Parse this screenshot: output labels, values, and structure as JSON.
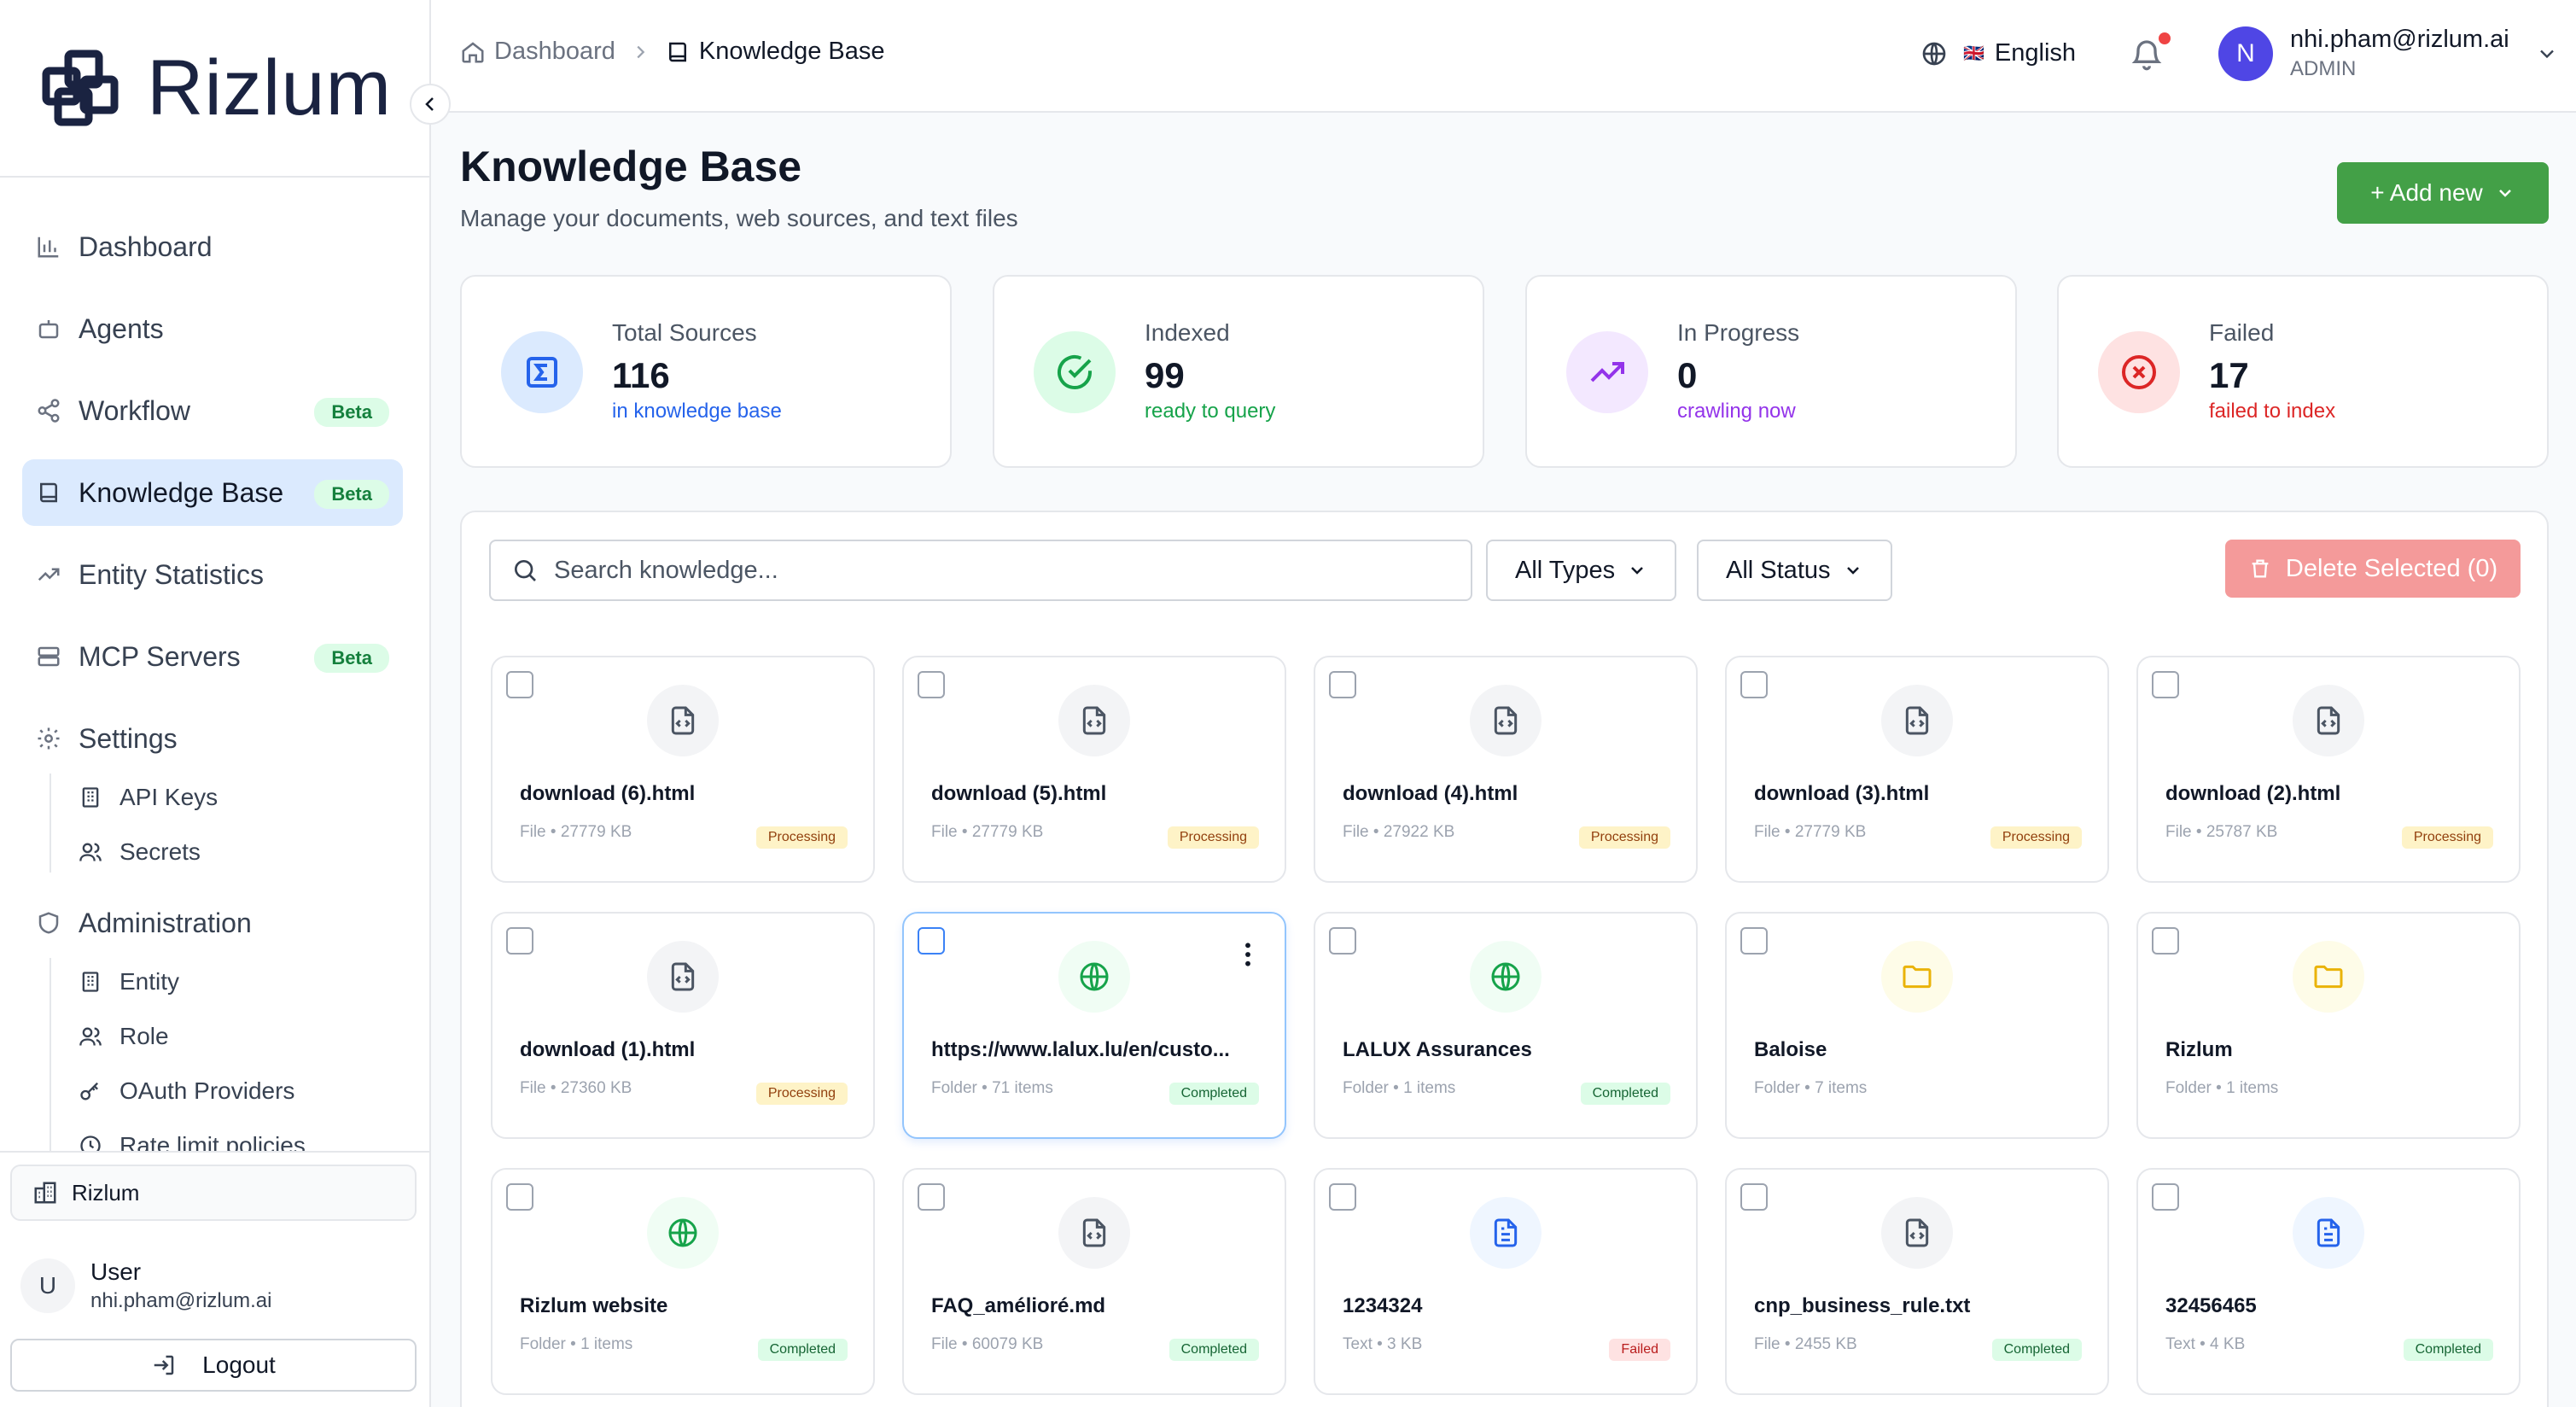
{
  "brand": {
    "name": "Rizlum"
  },
  "sidebar": {
    "items": [
      {
        "label": "Dashboard",
        "icon": "bar-chart-icon"
      },
      {
        "label": "Agents",
        "icon": "bot-icon"
      },
      {
        "label": "Workflow",
        "icon": "share-icon",
        "badge": "Beta"
      },
      {
        "label": "Knowledge Base",
        "icon": "book-icon",
        "badge": "Beta",
        "active": true
      },
      {
        "label": "Entity Statistics",
        "icon": "trending-up-icon"
      },
      {
        "label": "MCP Servers",
        "icon": "server-icon",
        "badge": "Beta"
      },
      {
        "label": "Settings",
        "icon": "gear-icon"
      }
    ],
    "settings_sub": [
      {
        "label": "API Keys",
        "icon": "building-icon"
      },
      {
        "label": "Secrets",
        "icon": "users-icon"
      }
    ],
    "admin_label": "Administration",
    "admin_sub": [
      {
        "label": "Entity",
        "icon": "building-icon"
      },
      {
        "label": "Role",
        "icon": "users-icon"
      },
      {
        "label": "OAuth Providers",
        "icon": "key-icon"
      },
      {
        "label": "Rate limit policies",
        "icon": "clock-icon"
      }
    ],
    "org": "Rizlum",
    "user": {
      "initial": "U",
      "name": "User",
      "email": "nhi.pham@rizlum.ai"
    },
    "logout": "Logout"
  },
  "topbar": {
    "breadcrumb": [
      "Dashboard",
      "Knowledge Base"
    ],
    "language": "English",
    "flag": "🇬🇧",
    "profile": {
      "initial": "N",
      "email": "nhi.pham@rizlum.ai",
      "role": "ADMIN"
    }
  },
  "page": {
    "title": "Knowledge Base",
    "subtitle": "Manage your documents, web sources, and text files",
    "add_button": "+ Add new"
  },
  "stats": [
    {
      "label": "Total Sources",
      "value": "116",
      "desc": "in knowledge base",
      "color": "#2563eb",
      "bg": "#dbeafe"
    },
    {
      "label": "Indexed",
      "value": "99",
      "desc": "ready to query",
      "color": "#16a34a",
      "bg": "#dcfce7"
    },
    {
      "label": "In Progress",
      "value": "0",
      "desc": "crawling now",
      "color": "#9333ea",
      "bg": "#f3e8ff"
    },
    {
      "label": "Failed",
      "value": "17",
      "desc": "failed to index",
      "color": "#dc2626",
      "bg": "#fee2e2"
    }
  ],
  "filters": {
    "search_placeholder": "Search knowledge...",
    "types": "All Types",
    "status": "All Status",
    "delete": "Delete Selected (0)"
  },
  "cards": [
    {
      "title": "download (6).html",
      "meta": "File • 27779 KB",
      "status": "Processing",
      "icon": "file-code-icon"
    },
    {
      "title": "download (5).html",
      "meta": "File • 27779 KB",
      "status": "Processing",
      "icon": "file-code-icon"
    },
    {
      "title": "download (4).html",
      "meta": "File • 27922 KB",
      "status": "Processing",
      "icon": "file-code-icon"
    },
    {
      "title": "download (3).html",
      "meta": "File • 27779 KB",
      "status": "Processing",
      "icon": "file-code-icon"
    },
    {
      "title": "download (2).html",
      "meta": "File • 25787 KB",
      "status": "Processing",
      "icon": "file-code-icon"
    },
    {
      "title": "download (1).html",
      "meta": "File • 27360 KB",
      "status": "Processing",
      "icon": "file-code-icon"
    },
    {
      "title": "https://www.lalux.lu/en/custo...",
      "meta": "Folder • 71 items",
      "status": "Completed",
      "icon": "globe-icon"
    },
    {
      "title": "LALUX Assurances",
      "meta": "Folder • 1 items",
      "status": "Completed",
      "icon": "globe-icon"
    },
    {
      "title": "Baloise",
      "meta": "Folder • 7 items",
      "status": "",
      "icon": "folder-icon"
    },
    {
      "title": "Rizlum",
      "meta": "Folder • 1 items",
      "status": "",
      "icon": "folder-icon"
    },
    {
      "title": "Rizlum website",
      "meta": "Folder • 1 items",
      "status": "Completed",
      "icon": "globe-icon"
    },
    {
      "title": "FAQ_amélioré.md",
      "meta": "File • 60079 KB",
      "status": "Completed",
      "icon": "file-code-icon"
    },
    {
      "title": "1234324",
      "meta": "Text • 3 KB",
      "status": "Failed",
      "icon": "file-text-icon"
    },
    {
      "title": "cnp_business_rule.txt",
      "meta": "File • 2455 KB",
      "status": "Completed",
      "icon": "file-code-icon"
    },
    {
      "title": "32456465",
      "meta": "Text • 4 KB",
      "status": "Completed",
      "icon": "file-text-icon"
    }
  ]
}
